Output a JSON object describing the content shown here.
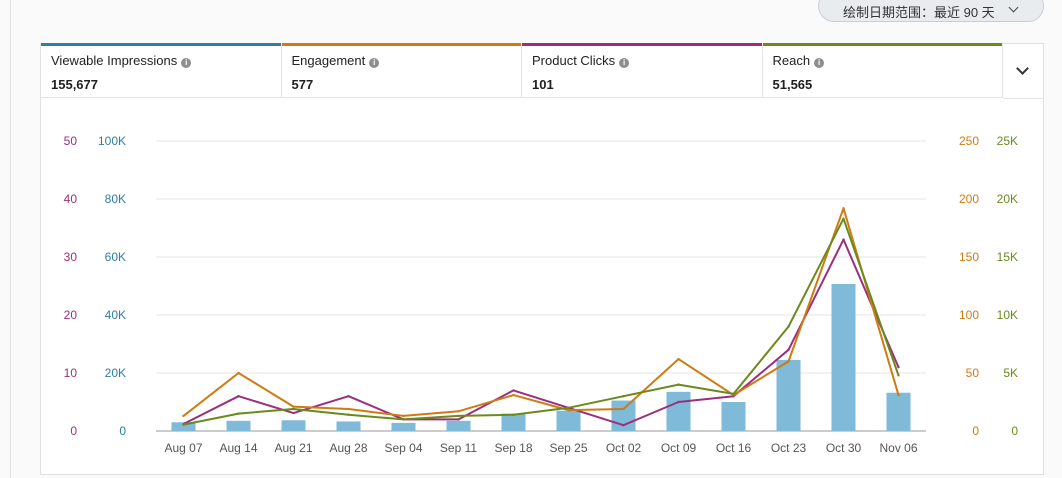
{
  "date_range": {
    "label": "绘制日期范围：最近 90 天",
    "icon": "chevron-down-icon"
  },
  "tabs": [
    {
      "label": "Viewable Impressions",
      "value": "155,677",
      "color": "#2f7ea3",
      "icon": "info-icon",
      "info": "i"
    },
    {
      "label": "Engagement",
      "value": "577",
      "color": "#d07a12",
      "icon": "info-icon",
      "info": "i"
    },
    {
      "label": "Product Clicks",
      "value": "101",
      "color": "#9b2f7d",
      "icon": "info-icon",
      "info": "i"
    },
    {
      "label": "Reach",
      "value": "51,565",
      "color": "#6a8a1c",
      "icon": "info-icon",
      "info": "i"
    }
  ],
  "expand_icon": "chevron-down-icon",
  "chart_data": {
    "type": "bar",
    "categories": [
      "Aug 07",
      "Aug 14",
      "Aug 21",
      "Aug 28",
      "Sep 04",
      "Sep 11",
      "Sep 18",
      "Sep 25",
      "Oct 02",
      "Oct 09",
      "Oct 16",
      "Oct 23",
      "Oct 30",
      "Nov 06"
    ],
    "grid": true,
    "series": [
      {
        "name": "Viewable Impressions",
        "type": "bar",
        "axis": "left-outer",
        "color": "#7fbad8",
        "values": [
          3000,
          3500,
          3700,
          3300,
          2800,
          3500,
          6000,
          7000,
          10500,
          13500,
          10000,
          24500,
          50700,
          13200
        ]
      },
      {
        "name": "Product Clicks",
        "type": "line",
        "axis": "left-inner",
        "color": "#9b2f7d",
        "values": [
          1.2,
          6.0,
          3.1,
          6.0,
          2.0,
          2.0,
          7.0,
          4.0,
          1.0,
          5.0,
          6.0,
          14.0,
          33.0,
          11.0
        ]
      },
      {
        "name": "Engagement",
        "type": "line",
        "axis": "right-inner",
        "color": "#d07a12",
        "values": [
          13,
          50,
          21,
          19,
          13,
          17,
          31,
          18,
          19,
          62,
          31,
          60,
          192,
          31
        ]
      },
      {
        "name": "Reach",
        "type": "line",
        "axis": "right-outer",
        "color": "#6a8a1c",
        "values": [
          550,
          1500,
          1900,
          1400,
          1000,
          1300,
          1400,
          2000,
          3000,
          4000,
          3200,
          9000,
          18300,
          4800
        ]
      }
    ],
    "axes": {
      "left-outer": {
        "ticks": [
          "0",
          "20K",
          "40K",
          "60K",
          "80K",
          "100K"
        ],
        "ylim": [
          0,
          100000
        ],
        "color": "#2f7ea3"
      },
      "left-inner": {
        "ticks": [
          "0",
          "10",
          "20",
          "30",
          "40",
          "50"
        ],
        "ylim": [
          0,
          50
        ],
        "color": "#9b2f7d"
      },
      "right-inner": {
        "ticks": [
          "0",
          "50",
          "100",
          "150",
          "200",
          "250"
        ],
        "ylim": [
          0,
          250
        ],
        "color": "#d07a12"
      },
      "right-outer": {
        "ticks": [
          "0",
          "5K",
          "10K",
          "15K",
          "20K",
          "25K"
        ],
        "ylim": [
          0,
          25000
        ],
        "color": "#6a8a1c"
      }
    }
  }
}
